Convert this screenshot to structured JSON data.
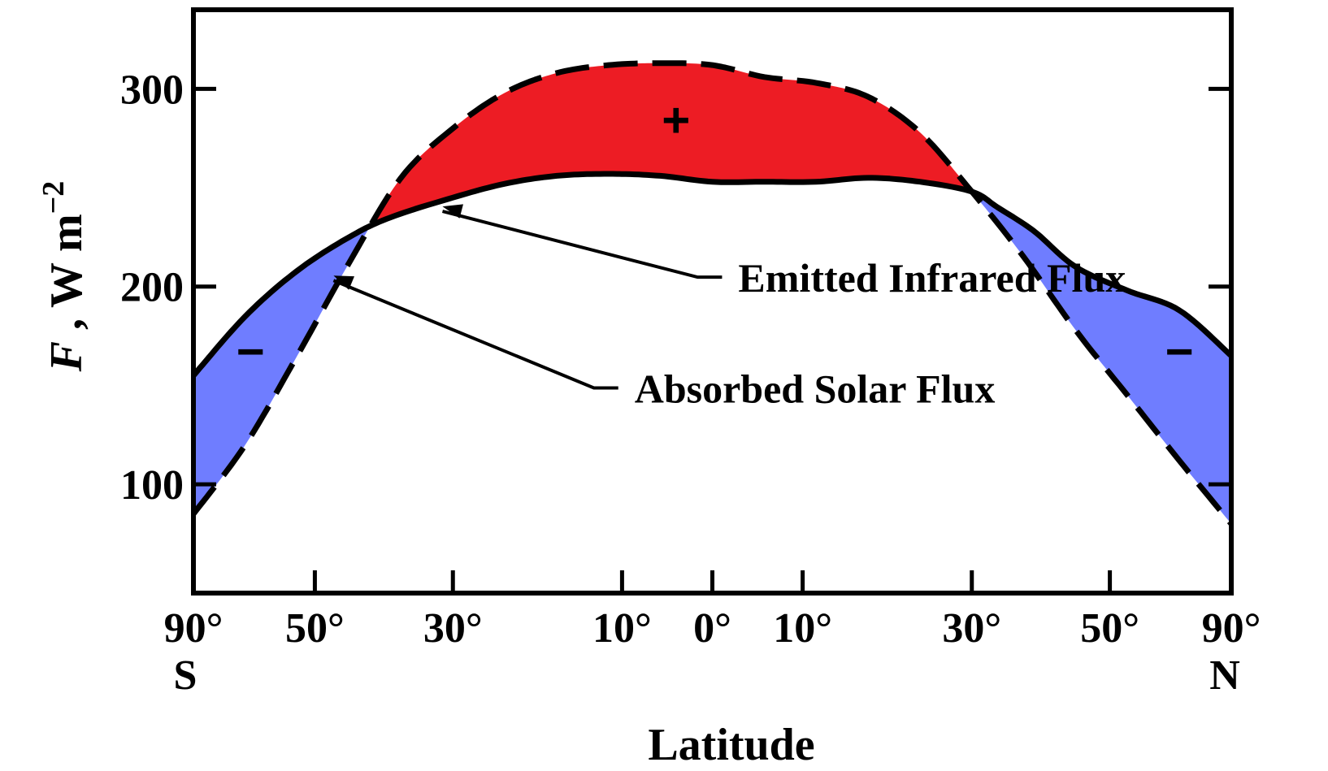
{
  "chart_data": {
    "type": "line",
    "xlabel": "Latitude",
    "ylabel": {
      "italic": "F",
      "rest": " ,  W m",
      "sup": "−2"
    },
    "xlim": [
      -1,
      1
    ],
    "ylim": [
      45,
      340
    ],
    "yticks": [
      {
        "value": 100,
        "label": "100"
      },
      {
        "value": 200,
        "label": "200"
      },
      {
        "value": 300,
        "label": "300"
      }
    ],
    "xticks": [
      {
        "value": -1.0,
        "label": "90°",
        "sub": "S"
      },
      {
        "value": -0.766,
        "label": "50°"
      },
      {
        "value": -0.5,
        "label": "30°"
      },
      {
        "value": -0.174,
        "label": "10°"
      },
      {
        "value": 0.0,
        "label": "0°"
      },
      {
        "value": 0.174,
        "label": "10°"
      },
      {
        "value": 0.5,
        "label": "30°"
      },
      {
        "value": 0.766,
        "label": "50°"
      },
      {
        "value": 1.0,
        "label": "90°",
        "sub": "N"
      }
    ],
    "x_axis_note": "sine of latitude",
    "series": [
      {
        "name": "Emitted Infrared Flux",
        "style": "solid",
        "x": [
          -1.0,
          -0.9,
          -0.8,
          -0.7,
          -0.62,
          -0.5,
          -0.4,
          -0.3,
          -0.2,
          -0.1,
          0.0,
          0.1,
          0.2,
          0.3,
          0.4,
          0.5,
          0.55,
          0.62,
          0.7,
          0.8,
          0.9,
          1.0
        ],
        "values": [
          155,
          185,
          208,
          225,
          235,
          245,
          252,
          256,
          257,
          256,
          253,
          253,
          253,
          255,
          253,
          248,
          240,
          228,
          210,
          198,
          188,
          165
        ]
      },
      {
        "name": "Absorbed Solar Flux",
        "style": "dashed",
        "x": [
          -1.0,
          -0.9,
          -0.8,
          -0.7,
          -0.6,
          -0.5,
          -0.4,
          -0.3,
          -0.2,
          -0.1,
          0.0,
          0.1,
          0.2,
          0.3,
          0.4,
          0.5,
          0.6,
          0.7,
          0.8,
          0.9,
          1.0
        ],
        "values": [
          85,
          120,
          165,
          212,
          255,
          280,
          298,
          308,
          312,
          313,
          312,
          306,
          303,
          296,
          278,
          248,
          215,
          178,
          145,
          112,
          80
        ]
      }
    ],
    "annotations": [
      {
        "text": "Emitted Infrared Flux",
        "x": 0.05,
        "y": 199,
        "arrow_to": [
          -0.52,
          243
        ]
      },
      {
        "text": "Absorbed Solar Flux",
        "x": -0.15,
        "y": 143,
        "arrow_to": [
          -0.73,
          208
        ]
      },
      {
        "text": "+",
        "x": -0.07,
        "y": 284
      },
      {
        "text": "−",
        "x": -0.89,
        "y": 167
      },
      {
        "text": "−",
        "x": 0.9,
        "y": 167
      }
    ],
    "fill_colors": {
      "surplus": "#ed1c24",
      "deficit": "#6f7dff"
    },
    "grid": false,
    "legend": "none"
  }
}
